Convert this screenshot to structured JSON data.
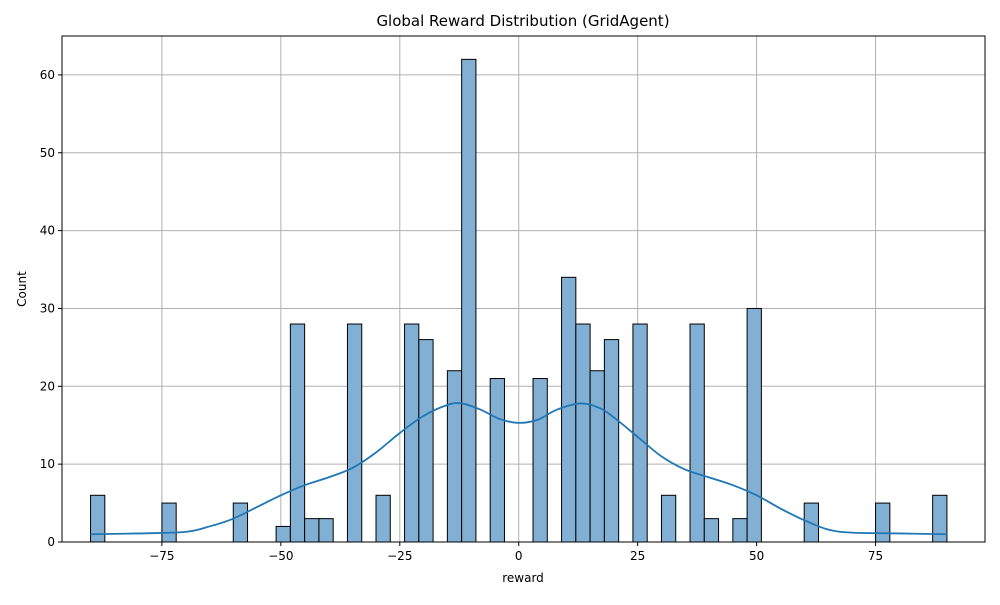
{
  "chart_data": {
    "type": "bar",
    "title": "Global Reward Distribution (GridAgent)",
    "xlabel": "reward",
    "ylabel": "Count",
    "xlim": [
      -96.0,
      98.0
    ],
    "ylim": [
      0,
      65
    ],
    "grid": true,
    "x_ticks": [
      -75,
      -50,
      -25,
      0,
      25,
      50,
      75
    ],
    "x_tick_labels": [
      "−75",
      "−50",
      "−25",
      "0",
      "25",
      "50",
      "75"
    ],
    "y_ticks": [
      0,
      10,
      20,
      30,
      40,
      50,
      60
    ],
    "y_tick_labels": [
      "0",
      "10",
      "20",
      "30",
      "40",
      "50",
      "60"
    ],
    "bin_width": 3.0,
    "bins": [
      {
        "start": -90,
        "count": 6
      },
      {
        "start": -75,
        "count": 5
      },
      {
        "start": -60,
        "count": 5
      },
      {
        "start": -51,
        "count": 2
      },
      {
        "start": -48,
        "count": 28
      },
      {
        "start": -45,
        "count": 3
      },
      {
        "start": -42,
        "count": 3
      },
      {
        "start": -36,
        "count": 28
      },
      {
        "start": -30,
        "count": 6
      },
      {
        "start": -24,
        "count": 28
      },
      {
        "start": -21,
        "count": 26
      },
      {
        "start": -15,
        "count": 22
      },
      {
        "start": -12,
        "count": 62
      },
      {
        "start": -6,
        "count": 21
      },
      {
        "start": 3,
        "count": 21
      },
      {
        "start": 9,
        "count": 34
      },
      {
        "start": 12,
        "count": 28
      },
      {
        "start": 15,
        "count": 22
      },
      {
        "start": 18,
        "count": 26
      },
      {
        "start": 24,
        "count": 28
      },
      {
        "start": 30,
        "count": 6
      },
      {
        "start": 36,
        "count": 28
      },
      {
        "start": 39,
        "count": 3
      },
      {
        "start": 45,
        "count": 3
      },
      {
        "start": 48,
        "count": 30
      },
      {
        "start": 60,
        "count": 5
      },
      {
        "start": 75,
        "count": 5
      },
      {
        "start": 87,
        "count": 6
      }
    ],
    "kde": [
      [
        -90,
        1.0
      ],
      [
        -80,
        1.1
      ],
      [
        -70,
        1.3
      ],
      [
        -65,
        2.0
      ],
      [
        -60,
        3.0
      ],
      [
        -55,
        4.5
      ],
      [
        -50,
        6.0
      ],
      [
        -45,
        7.3
      ],
      [
        -40,
        8.3
      ],
      [
        -35,
        9.5
      ],
      [
        -30,
        11.5
      ],
      [
        -25,
        14.0
      ],
      [
        -20,
        16.2
      ],
      [
        -15,
        17.6
      ],
      [
        -12,
        17.8
      ],
      [
        -8,
        17.0
      ],
      [
        -4,
        15.8
      ],
      [
        0,
        15.3
      ],
      [
        4,
        15.7
      ],
      [
        8,
        17.0
      ],
      [
        13,
        17.8
      ],
      [
        17,
        17.2
      ],
      [
        20,
        16.0
      ],
      [
        25,
        13.5
      ],
      [
        30,
        11.0
      ],
      [
        35,
        9.3
      ],
      [
        40,
        8.3
      ],
      [
        45,
        7.3
      ],
      [
        50,
        6.0
      ],
      [
        55,
        4.3
      ],
      [
        60,
        2.8
      ],
      [
        65,
        1.6
      ],
      [
        70,
        1.2
      ],
      [
        80,
        1.1
      ],
      [
        90,
        1.0
      ]
    ],
    "colors": {
      "bar_fill": "#82b0d4",
      "bar_edge": "#000000",
      "kde_line": "#1f77b4",
      "grid": "#b0b0b0"
    }
  }
}
